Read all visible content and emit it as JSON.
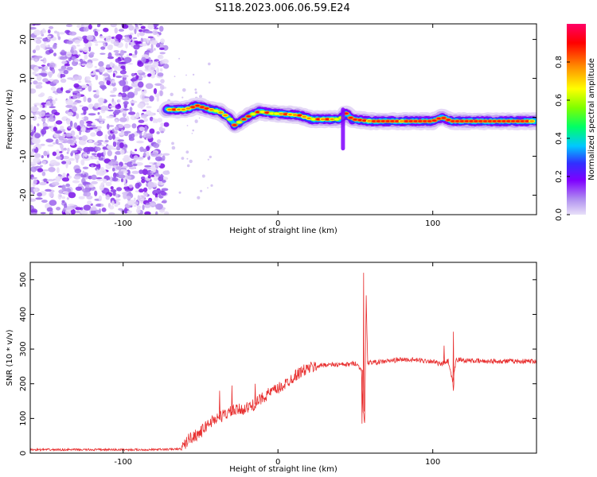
{
  "figure": {
    "title": "S118.2023.006.06.59.E24"
  },
  "chart_data": [
    {
      "type": "heatmap",
      "xlabel": "Height of straight line (km)",
      "ylabel": "Frequency (Hz)",
      "xlim": [
        -160,
        167
      ],
      "ylim": [
        -25,
        24
      ],
      "x_ticks": [
        -100,
        0,
        100
      ],
      "y_ticks": [
        -20,
        -10,
        0,
        10,
        20
      ],
      "noise_region_x": [
        -160,
        -72
      ],
      "ridge": [
        [
          -72,
          2
        ],
        [
          -60,
          2
        ],
        [
          -52,
          3
        ],
        [
          -44,
          2
        ],
        [
          -38,
          1.5
        ],
        [
          -32,
          0
        ],
        [
          -28,
          -2
        ],
        [
          -24,
          -1
        ],
        [
          -18,
          0.5
        ],
        [
          -12,
          1.5
        ],
        [
          -4,
          1
        ],
        [
          5,
          0.8
        ],
        [
          14,
          0.5
        ],
        [
          22,
          -0.5
        ],
        [
          30,
          -0.5
        ],
        [
          40,
          -0.5
        ],
        [
          44,
          1
        ],
        [
          48,
          -0.5
        ],
        [
          60,
          -1
        ],
        [
          80,
          -1
        ],
        [
          100,
          -1
        ],
        [
          106,
          0
        ],
        [
          112,
          -1
        ],
        [
          130,
          -1
        ],
        [
          150,
          -1
        ],
        [
          167,
          -1
        ]
      ],
      "spur": {
        "x": 42,
        "y_range": [
          -8,
          2
        ]
      },
      "colorbar": {
        "label": "Normalized spectral amplitude",
        "ticks": [
          0.0,
          0.2,
          0.4,
          0.6,
          0.8
        ],
        "colors": [
          "#e8e0f8",
          "#7f00ff",
          "#3030ff",
          "#00c8ff",
          "#00ff66",
          "#7fff00",
          "#ffff00",
          "#ff8800",
          "#ff0000",
          "#ff0066"
        ]
      }
    },
    {
      "type": "line",
      "xlabel": "Height of straight line (km)",
      "ylabel": "SNR (10 * v/v)",
      "xlim": [
        -160,
        167
      ],
      "ylim": [
        0,
        550
      ],
      "x_ticks": [
        -100,
        0,
        100
      ],
      "y_ticks": [
        0,
        100,
        200,
        300,
        400,
        500
      ],
      "color": "#e83030",
      "series": [
        {
          "x": [
            -160,
            -140,
            -120,
            -100,
            -80,
            -62,
            -58,
            -50,
            -45,
            -40,
            -35,
            -30,
            -25,
            -20,
            -15,
            -10,
            -5,
            0,
            5,
            10,
            15,
            20,
            25,
            30,
            35,
            40,
            45,
            50,
            54,
            55,
            56,
            57,
            58,
            60,
            65,
            70,
            80,
            90,
            100,
            105,
            110,
            113,
            115,
            120,
            130,
            140,
            150,
            167
          ],
          "y": [
            10,
            10,
            10,
            10,
            10,
            12,
            40,
            60,
            85,
            100,
            110,
            120,
            125,
            130,
            140,
            160,
            175,
            185,
            200,
            220,
            235,
            245,
            250,
            255,
            255,
            255,
            255,
            260,
            240,
            120,
            90,
            450,
            260,
            262,
            262,
            265,
            270,
            268,
            265,
            255,
            265,
            200,
            270,
            268,
            265,
            265,
            265,
            265
          ]
        }
      ],
      "spikes": [
        [
          -38,
          180
        ],
        [
          -30,
          195
        ],
        [
          -15,
          200
        ],
        [
          55,
          520
        ],
        [
          54,
          85
        ],
        [
          107,
          310
        ],
        [
          113,
          350
        ],
        [
          113,
          180
        ]
      ]
    }
  ]
}
